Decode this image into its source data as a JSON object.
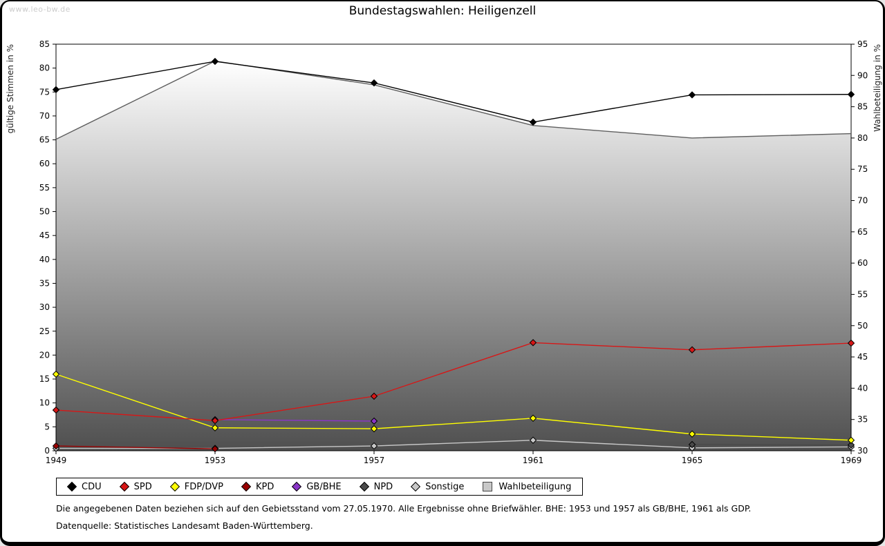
{
  "page": {
    "watermark": "www.leo-bw.de",
    "title": "Bundestagswahlen: Heiligenzell",
    "footnote1": "Die angegebenen Daten beziehen sich auf den Gebietsstand vom 27.05.1970. Alle Ergebnisse ohne Briefwähler. BHE: 1953 und 1957 als GB/BHE, 1961 als GDP.",
    "footnote2": "Datenquelle: Statistisches Landesamt Baden-Württemberg."
  },
  "chart_data": {
    "type": "line",
    "title": "Bundestagswahlen: Heiligenzell",
    "x_categories": [
      "1949",
      "1953",
      "1957",
      "1961",
      "1965",
      "1969"
    ],
    "axes": {
      "left": {
        "label": "gültige Stimmen in %",
        "min": 0,
        "max": 85,
        "tick_step": 5
      },
      "right": {
        "label": "Wahlbeteiligung in %",
        "min": 30,
        "max": 95,
        "tick_step": 5
      }
    },
    "grid": false,
    "legend_position": "bottom",
    "area_gradient": {
      "top": "#ffffff",
      "bottom": "#4f4f4f"
    },
    "series": [
      {
        "name": "CDU",
        "color": "#000000",
        "axis": "left",
        "marker": "diamond",
        "values": [
          75.5,
          81.4,
          76.9,
          68.7,
          74.4,
          74.5
        ]
      },
      {
        "name": "SPD",
        "color": "#d81616",
        "axis": "left",
        "marker": "diamond",
        "values": [
          8.5,
          6.3,
          11.4,
          22.6,
          21.1,
          22.5
        ]
      },
      {
        "name": "FDP/DVP",
        "color": "#ffff00",
        "axis": "left",
        "marker": "diamond",
        "values": [
          16.0,
          4.8,
          4.6,
          6.8,
          3.5,
          2.2
        ]
      },
      {
        "name": "KPD",
        "color": "#990000",
        "axis": "left",
        "marker": "diamond",
        "values": [
          1.0,
          0.4,
          null,
          null,
          null,
          null
        ]
      },
      {
        "name": "GB/BHE",
        "color": "#8a35c8",
        "axis": "left",
        "marker": "diamond",
        "values": [
          null,
          6.5,
          6.2,
          null,
          null,
          null
        ]
      },
      {
        "name": "NPD",
        "color": "#4a4a4a",
        "axis": "left",
        "marker": "diamond",
        "values": [
          null,
          null,
          null,
          null,
          1.3,
          1.2
        ]
      },
      {
        "name": "Sonstige",
        "color": "#c8c8c8",
        "axis": "left",
        "marker": "diamond",
        "values": [
          0.5,
          0.5,
          1.0,
          2.2,
          0.6,
          0.8
        ]
      },
      {
        "name": "Wahlbeteiligung",
        "color": "#5f5f5f",
        "axis": "right",
        "marker": "none",
        "area": true,
        "values": [
          79.8,
          92.3,
          88.5,
          82.0,
          80.0,
          80.7
        ]
      }
    ]
  }
}
